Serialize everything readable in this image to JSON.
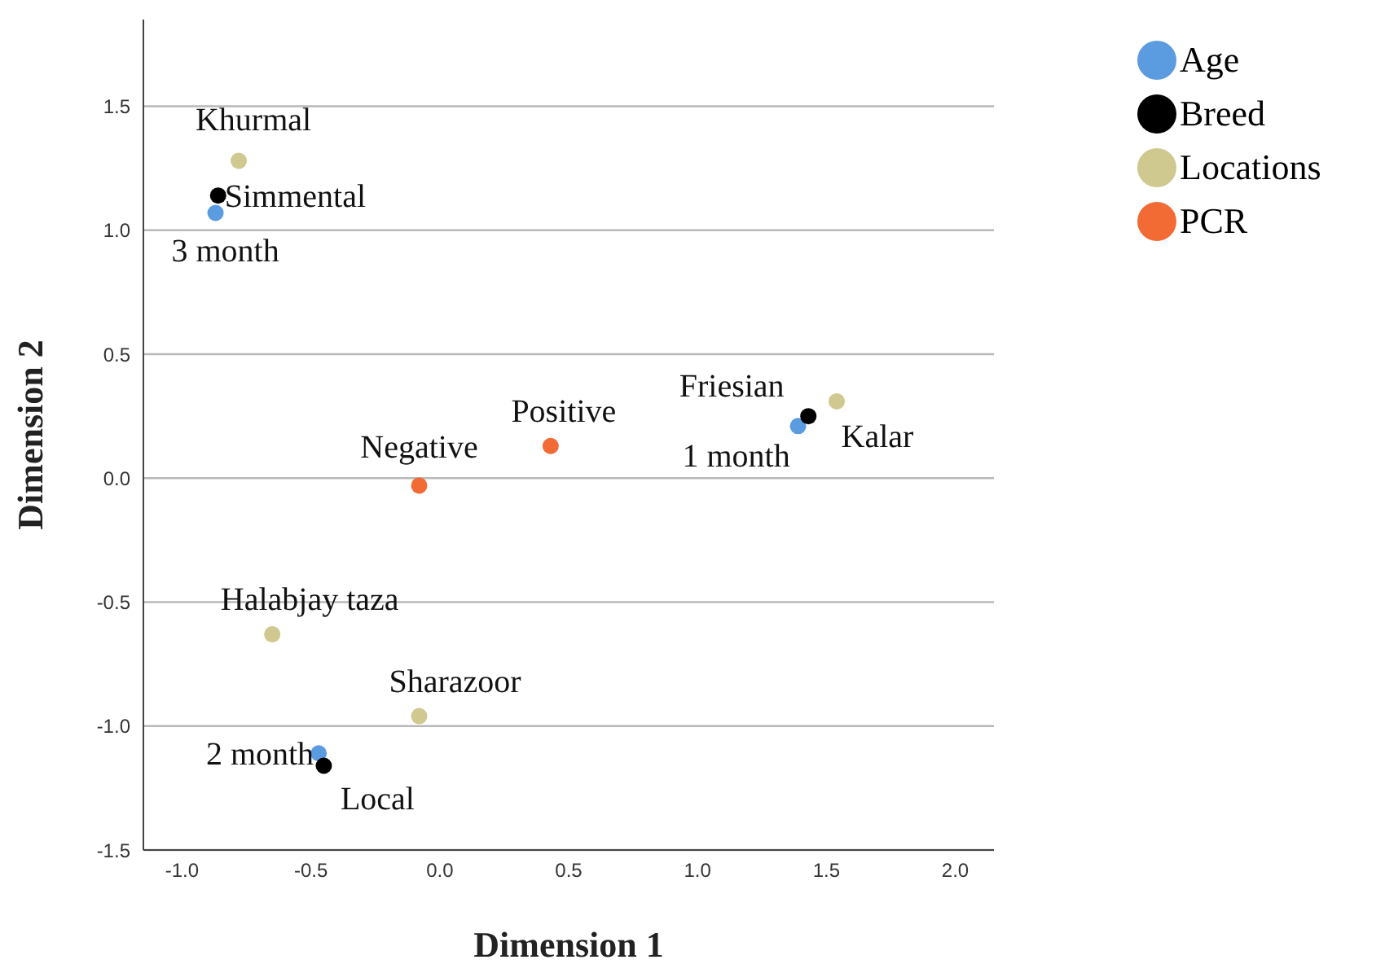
{
  "chart_data": {
    "type": "scatter",
    "xlabel": "Dimension 1",
    "ylabel": "Dimension 2",
    "xlim": [
      -1.15,
      2.15
    ],
    "ylim": [
      -1.5,
      1.85
    ],
    "xticks": [
      {
        "value": -1,
        "label": "-1.0"
      },
      {
        "value": -0.5,
        "label": "-0.5"
      },
      {
        "value": 0,
        "label": "0.0"
      },
      {
        "value": 0.5,
        "label": "0.5"
      },
      {
        "value": 1,
        "label": "1.0"
      },
      {
        "value": 1.5,
        "label": "1.5"
      },
      {
        "value": 2,
        "label": "2.0"
      }
    ],
    "yticks": [
      {
        "value": -1.5,
        "label": "-1.5"
      },
      {
        "value": -1,
        "label": "-1.0"
      },
      {
        "value": -0.5,
        "label": "-0.5"
      },
      {
        "value": 0,
        "label": "0.0"
      },
      {
        "value": 0.5,
        "label": "0.5"
      },
      {
        "value": 1,
        "label": "1.0"
      },
      {
        "value": 1.5,
        "label": "1.5"
      }
    ],
    "grid": "y",
    "legend": "top right",
    "marker": "circle",
    "series": [
      {
        "name": "Age",
        "color": "#5b9be0",
        "x": [
          -0.87,
          1.39,
          -0.47
        ],
        "values": [
          1.07,
          0.21,
          -1.11
        ]
      },
      {
        "name": "Breed",
        "color": "#000000",
        "x": [
          -0.86,
          1.43,
          -0.45
        ],
        "values": [
          1.14,
          0.25,
          -1.16
        ]
      },
      {
        "name": "Locations",
        "color": "#cfc88f",
        "x": [
          -0.78,
          1.54,
          -0.65,
          -0.08
        ],
        "values": [
          1.28,
          0.31,
          -0.63,
          -0.96
        ]
      },
      {
        "name": "PCR",
        "color": "#f26b35",
        "x": [
          0.43,
          -0.08
        ],
        "values": [
          0.13,
          -0.03
        ]
      }
    ],
    "annotations": [
      {
        "text": "Khurmal",
        "x": -0.78,
        "y": 1.28
      },
      {
        "text": "Simmental",
        "x": -0.86,
        "y": 1.14
      },
      {
        "text": "3 month",
        "x": -0.87,
        "y": 1.07
      },
      {
        "text": "Friesian",
        "x": 1.43,
        "y": 0.25
      },
      {
        "text": "1 month",
        "x": 1.39,
        "y": 0.21
      },
      {
        "text": "Kalar",
        "x": 1.54,
        "y": 0.31
      },
      {
        "text": "Positive",
        "x": 0.43,
        "y": 0.13
      },
      {
        "text": "Negative",
        "x": -0.08,
        "y": -0.03
      },
      {
        "text": "Halabjay taza",
        "x": -0.65,
        "y": -0.63
      },
      {
        "text": "Sharazoor",
        "x": -0.08,
        "y": -0.96
      },
      {
        "text": "2 month",
        "x": -0.47,
        "y": -1.11
      },
      {
        "text": "Local",
        "x": -0.45,
        "y": -1.16
      }
    ]
  }
}
